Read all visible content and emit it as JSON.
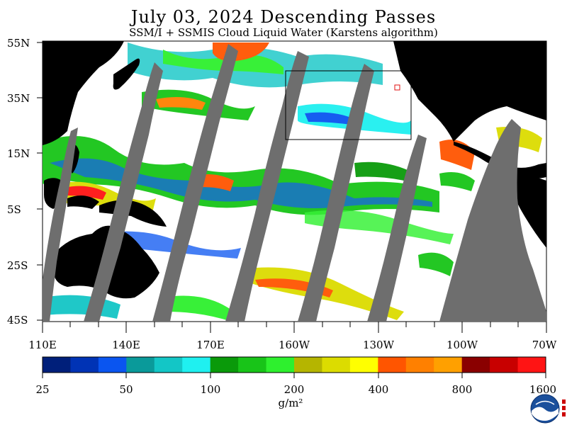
{
  "title": "July 03, 2024  Descending Passes",
  "subtitle": "SSM/I + SSMIS Cloud Liquid Water (Karstens algorithm)",
  "lat_labels": [
    "55N",
    "35N",
    "15N",
    "5S",
    "25S",
    "45S"
  ],
  "lon_labels": [
    "110E",
    "140E",
    "170E",
    "160W",
    "130W",
    "100W",
    "70W"
  ],
  "colorbar": {
    "colors": [
      "#001f7a",
      "#0033b5",
      "#0a55f0",
      "#0a9a9a",
      "#13c6c6",
      "#1ff0f0",
      "#0a9a0a",
      "#18c418",
      "#2ef02e",
      "#b5b500",
      "#dcdc00",
      "#ffff00",
      "#ff5500",
      "#ff8000",
      "#ffa000",
      "#8a0000",
      "#c80000",
      "#ff1414"
    ],
    "labels": [
      "25",
      "50",
      "100",
      "200",
      "400",
      "800",
      "1600"
    ],
    "unit": "g/m²"
  },
  "colors": {
    "land": "#000000",
    "no_data": "#6e6e6e",
    "clear": "#ffffff",
    "box_outline": "#000000",
    "marker": "#e01010"
  },
  "logo": {
    "icon": "noaa-logo"
  }
}
